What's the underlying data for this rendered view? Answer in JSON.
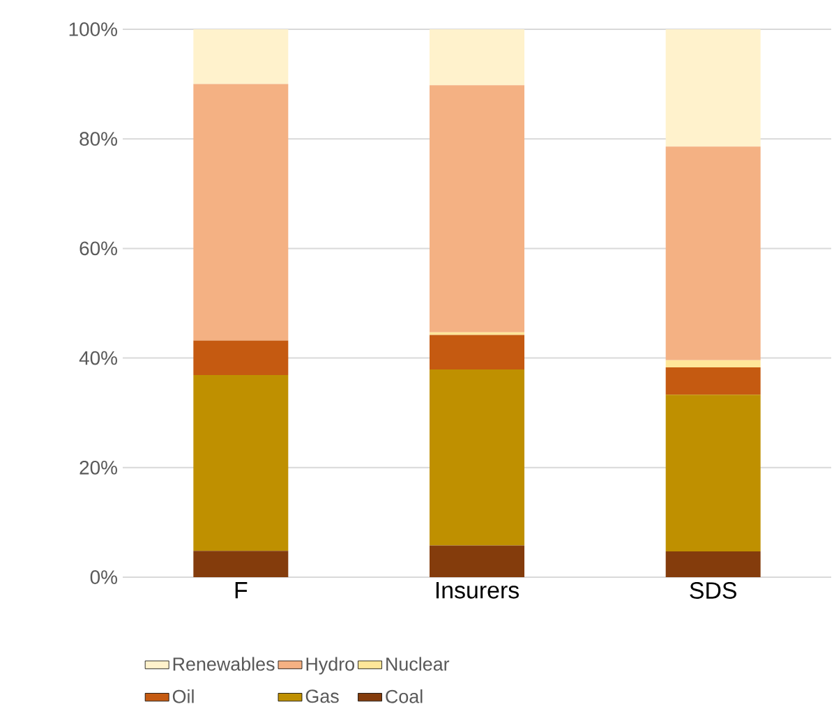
{
  "chart_data": {
    "type": "bar",
    "stacked": true,
    "categories": [
      "F",
      "Insurers",
      "SDS"
    ],
    "series": [
      {
        "name": "Coal",
        "color": "#843c0c",
        "values": [
          4.8,
          5.8,
          4.7
        ]
      },
      {
        "name": "Gas",
        "color": "#bf9000",
        "values": [
          32.1,
          32.1,
          28.6
        ]
      },
      {
        "name": "Oil",
        "color": "#c55a11",
        "values": [
          6.3,
          6.3,
          5.0
        ]
      },
      {
        "name": "Nuclear",
        "color": "#ffe699",
        "values": [
          0,
          0.5,
          1.3
        ]
      },
      {
        "name": "Hydro",
        "color": "#f4b183",
        "values": [
          46.8,
          45.1,
          39.0
        ]
      },
      {
        "name": "Renewables",
        "color": "#fff2cc",
        "values": [
          10.0,
          10.2,
          21.4
        ]
      }
    ],
    "ylim": [
      0,
      100
    ],
    "yticks": [
      {
        "value": 0,
        "label": "0%"
      },
      {
        "value": 20,
        "label": "20%"
      },
      {
        "value": 40,
        "label": "40%"
      },
      {
        "value": 60,
        "label": "60%"
      },
      {
        "value": 80,
        "label": "80%"
      },
      {
        "value": 100,
        "label": "100%"
      }
    ],
    "grid": "y",
    "legend": "bottom"
  }
}
